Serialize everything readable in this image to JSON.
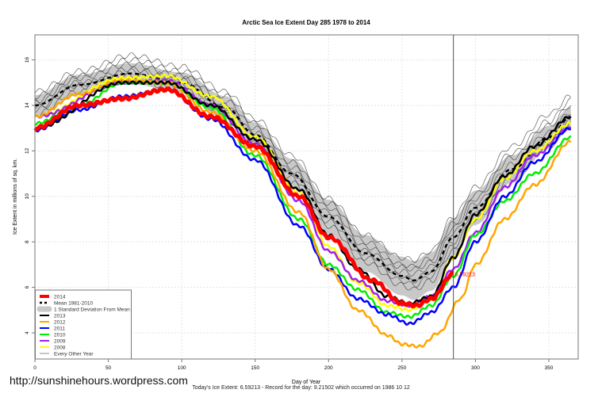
{
  "chart_data": {
    "type": "line",
    "title": "Arctic Sea Ice Extent Day 285 1978 to 2014",
    "xlabel": "Day of Year",
    "ylabel": "Ice Extent in millions of sq. km.",
    "xlim": [
      0,
      370
    ],
    "ylim": [
      2.85,
      17.1
    ],
    "xticks": [
      0,
      50,
      100,
      150,
      200,
      250,
      300,
      350
    ],
    "yticks": [
      4,
      6,
      8,
      10,
      12,
      14,
      16
    ],
    "grid": true,
    "legend_placement": "bottom-left",
    "marker_day": 285,
    "annotation": "6.59213",
    "mean": {
      "name": "Mean 1981-2010",
      "color": "#000000",
      "days": [
        0,
        30,
        65,
        100,
        130,
        150,
        175,
        200,
        225,
        250,
        258,
        270,
        285,
        300,
        325,
        350,
        365
      ],
      "values": [
        14.0,
        14.9,
        15.4,
        15.0,
        13.9,
        12.7,
        11.0,
        9.1,
        7.5,
        6.5,
        6.3,
        6.7,
        8.2,
        9.5,
        11.2,
        12.6,
        13.5
      ]
    },
    "sd_band": {
      "name": "1 Standard Deviation From Mean",
      "color": "#c8c8c8",
      "days": [
        0,
        30,
        65,
        100,
        130,
        150,
        175,
        200,
        225,
        250,
        258,
        270,
        285,
        300,
        325,
        350,
        365
      ],
      "sd": [
        0.45,
        0.45,
        0.45,
        0.45,
        0.5,
        0.55,
        0.65,
        0.75,
        0.8,
        0.85,
        0.85,
        0.85,
        0.85,
        0.75,
        0.6,
        0.5,
        0.45
      ]
    },
    "series": [
      {
        "name": "2014",
        "color": "#ff0000",
        "width": 5,
        "days": [
          0,
          30,
          60,
          90,
          120,
          150,
          180,
          200,
          230,
          250,
          260,
          270,
          285
        ],
        "values": [
          13.0,
          14.0,
          14.3,
          14.7,
          13.5,
          12.2,
          10.0,
          8.2,
          6.3,
          5.3,
          5.2,
          5.5,
          6.59
        ]
      },
      {
        "name": "2013",
        "color": "#000000",
        "width": 2.5,
        "days": [
          0,
          60,
          90,
          120,
          150,
          180,
          200,
          220,
          240,
          255,
          270,
          285,
          300,
          320,
          340,
          365
        ],
        "values": [
          13.0,
          15.0,
          15.0,
          14.0,
          12.5,
          10.3,
          8.3,
          6.8,
          5.6,
          5.3,
          5.6,
          7.3,
          9.2,
          10.9,
          12.2,
          13.5
        ]
      },
      {
        "name": "2012",
        "color": "#ffa500",
        "width": 2.5,
        "days": [
          0,
          30,
          60,
          90,
          120,
          150,
          180,
          200,
          220,
          240,
          250,
          262,
          275,
          290,
          300,
          320,
          340,
          365
        ],
        "values": [
          13.5,
          14.5,
          15.1,
          15.0,
          13.7,
          12.0,
          9.3,
          6.8,
          5.0,
          3.9,
          3.5,
          3.4,
          4.0,
          5.5,
          7.0,
          9.0,
          10.5,
          12.4
        ]
      },
      {
        "name": "2011",
        "color": "#0000ff",
        "width": 2.5,
        "days": [
          0,
          30,
          60,
          90,
          120,
          150,
          180,
          200,
          220,
          240,
          255,
          270,
          285,
          300,
          320,
          340,
          365
        ],
        "values": [
          12.9,
          13.8,
          14.4,
          14.7,
          13.4,
          11.6,
          8.7,
          6.8,
          5.5,
          4.8,
          4.4,
          4.9,
          6.0,
          8.0,
          10.0,
          11.5,
          13.0
        ]
      },
      {
        "name": "2010",
        "color": "#00ee00",
        "width": 2.5,
        "days": [
          0,
          30,
          60,
          90,
          120,
          150,
          180,
          200,
          220,
          240,
          255,
          270,
          285,
          300,
          320,
          340,
          365
        ],
        "values": [
          13.2,
          14.0,
          15.0,
          15.0,
          13.9,
          11.8,
          9.0,
          7.0,
          5.9,
          4.9,
          4.7,
          5.2,
          6.5,
          8.3,
          9.8,
          11.0,
          12.6
        ]
      },
      {
        "name": "2009",
        "color": "#a020f0",
        "width": 2.5,
        "days": [
          0,
          60,
          90,
          120,
          150,
          180,
          200,
          220,
          240,
          255,
          270,
          285,
          300,
          320,
          340,
          365
        ],
        "values": [
          13.5,
          15.0,
          15.1,
          14.0,
          12.3,
          9.8,
          7.6,
          6.3,
          5.4,
          5.2,
          5.6,
          6.8,
          8.4,
          10.4,
          11.8,
          13.0
        ]
      },
      {
        "name": "2008",
        "color": "#ffff00",
        "width": 2.5,
        "days": [
          0,
          60,
          90,
          120,
          150,
          180,
          200,
          220,
          240,
          255,
          270,
          285,
          300,
          320,
          340,
          365
        ],
        "values": [
          13.5,
          15.2,
          15.3,
          14.4,
          12.6,
          10.2,
          7.8,
          6.2,
          5.2,
          5.0,
          5.5,
          7.3,
          9.0,
          10.8,
          12.0,
          13.2
        ]
      }
    ],
    "other_years": {
      "name": "Every Other Year",
      "color": "#444444",
      "days": [
        0,
        30,
        65,
        100,
        130,
        150,
        175,
        200,
        225,
        250,
        258,
        270,
        285,
        300,
        325,
        350,
        365
      ],
      "lines": [
        [
          14.6,
          15.5,
          16.2,
          15.7,
          14.6,
          13.4,
          11.8,
          9.9,
          8.3,
          7.3,
          7.2,
          7.6,
          9.1,
          10.4,
          12.2,
          13.6,
          14.4
        ],
        [
          14.2,
          15.2,
          15.8,
          15.3,
          14.2,
          13.0,
          11.3,
          9.5,
          7.8,
          6.9,
          6.8,
          7.1,
          8.6,
          9.9,
          11.7,
          13.1,
          14.0
        ],
        [
          13.9,
          14.8,
          15.5,
          15.1,
          14.0,
          12.7,
          11.0,
          9.1,
          7.5,
          6.5,
          6.3,
          6.7,
          8.0,
          9.4,
          11.1,
          12.5,
          13.4
        ],
        [
          13.6,
          14.6,
          15.1,
          14.7,
          13.6,
          12.4,
          10.6,
          8.7,
          7.1,
          6.1,
          5.9,
          6.3,
          7.6,
          9.0,
          10.8,
          12.2,
          13.2
        ],
        [
          14.4,
          15.3,
          16.0,
          15.5,
          14.4,
          13.2,
          11.5,
          9.7,
          8.0,
          7.0,
          6.9,
          7.3,
          8.8,
          10.1,
          11.9,
          13.3,
          14.2
        ],
        [
          13.8,
          14.9,
          15.6,
          15.2,
          13.8,
          12.5,
          10.8,
          8.9,
          7.3,
          6.3,
          6.1,
          6.5,
          7.8,
          9.2,
          11.0,
          12.4,
          13.3
        ],
        [
          14.1,
          15.0,
          15.3,
          14.9,
          13.9,
          12.8,
          11.1,
          9.3,
          7.6,
          6.7,
          6.6,
          6.9,
          8.4,
          9.7,
          11.4,
          12.8,
          13.7
        ]
      ]
    }
  },
  "footer": {
    "watermark": "http://sunshinehours.wordpress.com",
    "status": "Today's Ice Extent: 6.59213  - Record for the day: 9.21502 which occurred on 1986 10 12"
  }
}
